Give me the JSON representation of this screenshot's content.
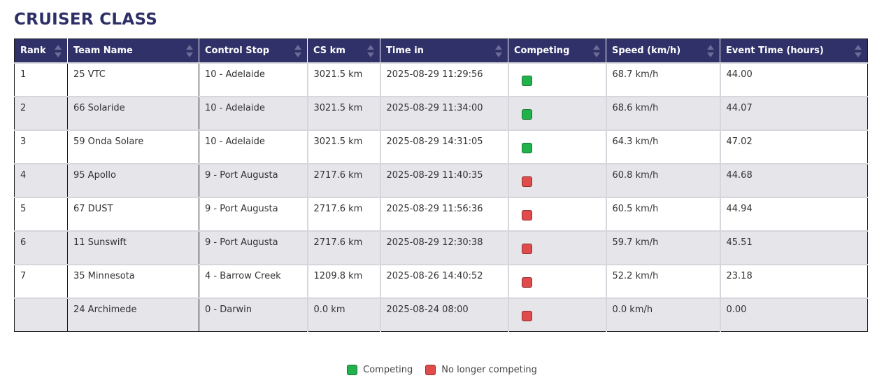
{
  "title": "CRUISER CLASS",
  "colors": {
    "competing": "#22b24c",
    "not_competing": "#e04b4b",
    "header_bg": "#2f3168"
  },
  "columns": [
    "Rank",
    "Team Name",
    "Control Stop",
    "CS km",
    "Time in",
    "Competing",
    "Speed (km/h)",
    "Event Time (hours)"
  ],
  "rows": [
    {
      "rank": "1",
      "team": "25 VTC",
      "stop": "10 - Adelaide",
      "cs_km": "3021.5 km",
      "time_in": "2025-08-29 11:29:56",
      "competing": true,
      "speed": "68.7 km/h",
      "event_time": "44.00"
    },
    {
      "rank": "2",
      "team": "66 Solaride",
      "stop": "10 - Adelaide",
      "cs_km": "3021.5 km",
      "time_in": "2025-08-29 11:34:00",
      "competing": true,
      "speed": "68.6 km/h",
      "event_time": "44.07"
    },
    {
      "rank": "3",
      "team": "59 Onda Solare",
      "stop": "10 - Adelaide",
      "cs_km": "3021.5 km",
      "time_in": "2025-08-29 14:31:05",
      "competing": true,
      "speed": "64.3 km/h",
      "event_time": "47.02"
    },
    {
      "rank": "4",
      "team": "95 Apollo",
      "stop": "9 - Port Augusta",
      "cs_km": "2717.6 km",
      "time_in": "2025-08-29 11:40:35",
      "competing": false,
      "speed": "60.8 km/h",
      "event_time": "44.68"
    },
    {
      "rank": "5",
      "team": "67 DUST",
      "stop": "9 - Port Augusta",
      "cs_km": "2717.6 km",
      "time_in": "2025-08-29 11:56:36",
      "competing": false,
      "speed": "60.5 km/h",
      "event_time": "44.94"
    },
    {
      "rank": "6",
      "team": "11 Sunswift",
      "stop": "9 - Port Augusta",
      "cs_km": "2717.6 km",
      "time_in": "2025-08-29 12:30:38",
      "competing": false,
      "speed": "59.7 km/h",
      "event_time": "45.51"
    },
    {
      "rank": "7",
      "team": "35 Minnesota",
      "stop": "4 - Barrow Creek",
      "cs_km": "1209.8 km",
      "time_in": "2025-08-26 14:40:52",
      "competing": false,
      "speed": "52.2 km/h",
      "event_time": "23.18"
    },
    {
      "rank": "",
      "team": "24 Archimede",
      "stop": "0 - Darwin",
      "cs_km": "0.0 km",
      "time_in": "2025-08-24 08:00",
      "competing": false,
      "speed": "0.0 km/h",
      "event_time": "0.00"
    }
  ],
  "legend": {
    "competing": "Competing",
    "not_competing": "No longer competing"
  }
}
